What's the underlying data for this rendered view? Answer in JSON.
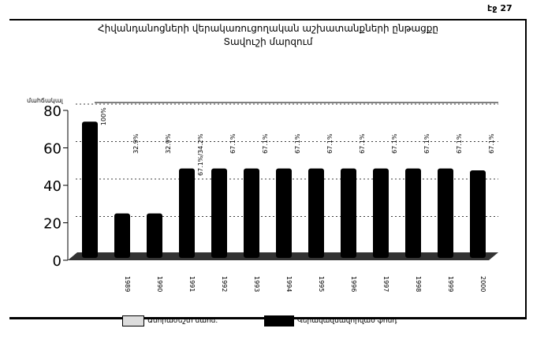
{
  "page_number": "էջ 27",
  "chart_data": {
    "type": "bar",
    "title": "Հիվանդանոցների վերակառուցողական աշխատանքների ընթացքը Տավուշի մարզում",
    "ylabel": "մահճակալ",
    "ylim": [
      0,
      80
    ],
    "yticks": [
      0,
      20,
      40,
      60,
      80
    ],
    "grid": true,
    "categories": [
      "",
      "1989",
      "1990",
      "1991",
      "1992",
      "1993",
      "1994",
      "1995",
      "1996",
      "1997",
      "1998",
      "1999",
      "2000"
    ],
    "series": [
      {
        "name": "Վերակազմավորված ֆոնդ",
        "color": "#000000",
        "values": [
          74,
          25,
          25,
          49,
          49,
          49,
          49,
          49,
          49,
          49,
          49,
          49,
          48
        ]
      }
    ],
    "data_labels": [
      "100%",
      "32.9%",
      "32.9%",
      "67.1%/34.2%",
      "67.1%",
      "67.1%",
      "67.1%",
      "67.1%",
      "67.1%",
      "67.1%",
      "67.1%",
      "67.1%",
      "67.1%"
    ],
    "legend": [
      {
        "label": "Անհրաժեշտ մահճ.",
        "color": "#ffffff"
      },
      {
        "label": "Վերակազմավորված ֆոնդ",
        "color": "#000000"
      }
    ],
    "legend_position": "bottom"
  }
}
